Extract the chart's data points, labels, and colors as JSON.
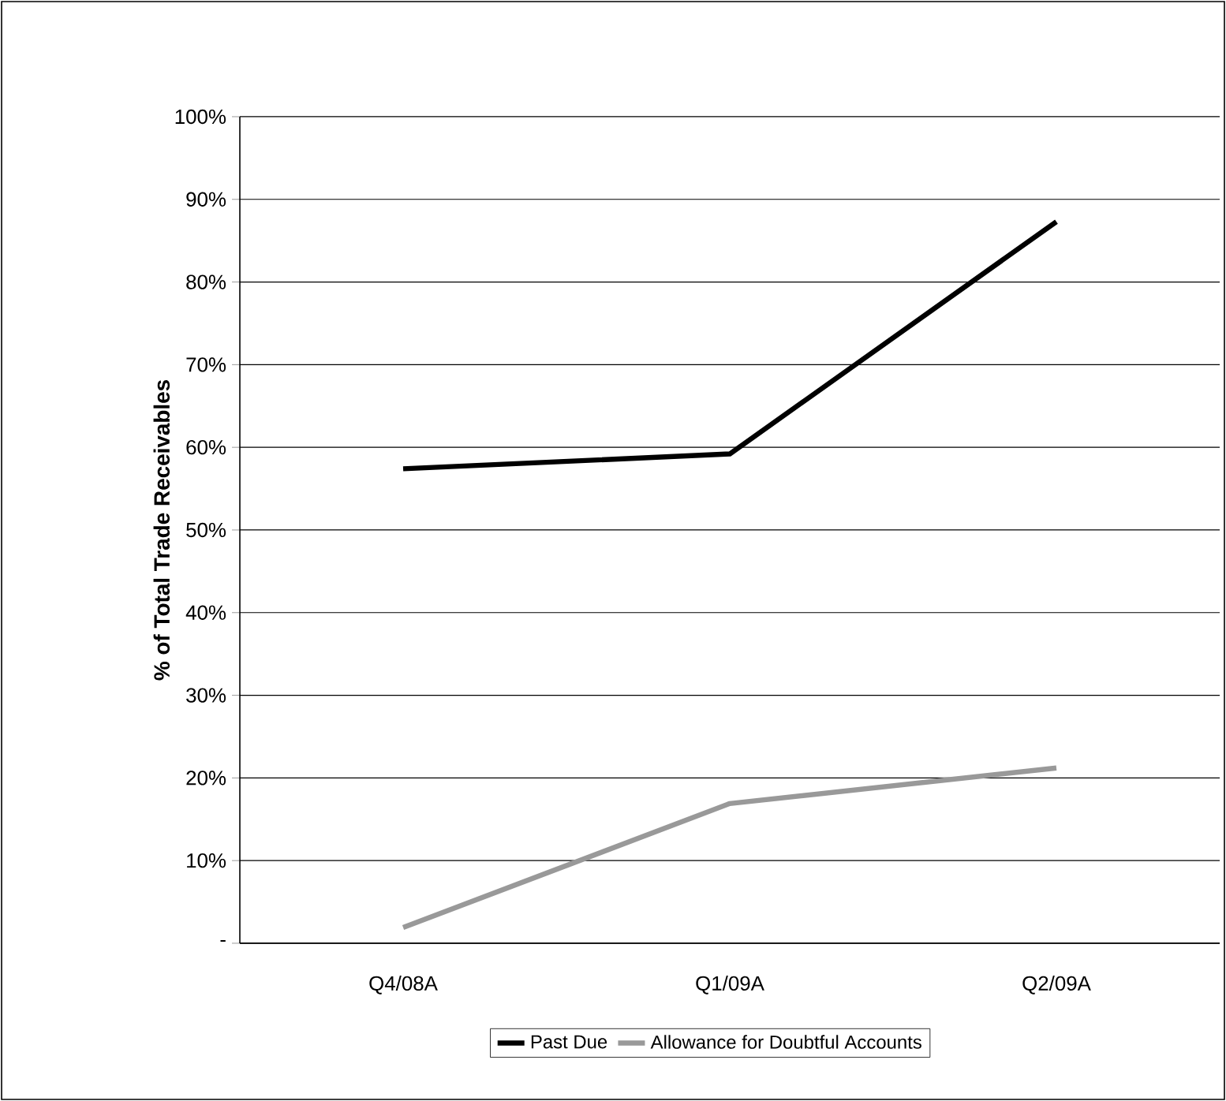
{
  "chart_data": {
    "type": "line",
    "ylabel": "% of Total Trade Receivables",
    "categories": [
      "Q4/08A",
      "Q1/09A",
      "Q2/09A"
    ],
    "series": [
      {
        "name": "Past Due",
        "color": "#000000",
        "values": [
          57.4,
          59.2,
          87.3
        ]
      },
      {
        "name": "Allowance for Doubtful Accounts",
        "color": "#999999",
        "values": [
          1.9,
          16.9,
          21.2
        ]
      }
    ],
    "ylim": [
      0,
      100
    ],
    "yticks": [
      {
        "value": 0,
        "label": "-"
      },
      {
        "value": 10,
        "label": "10%"
      },
      {
        "value": 20,
        "label": "20%"
      },
      {
        "value": 30,
        "label": "30%"
      },
      {
        "value": 40,
        "label": "40%"
      },
      {
        "value": 50,
        "label": "50%"
      },
      {
        "value": 60,
        "label": "60%"
      },
      {
        "value": 70,
        "label": "70%"
      },
      {
        "value": 80,
        "label": "80%"
      },
      {
        "value": 90,
        "label": "90%"
      },
      {
        "value": 100,
        "label": "100%"
      }
    ],
    "grid": "y",
    "legend": "bottom"
  }
}
